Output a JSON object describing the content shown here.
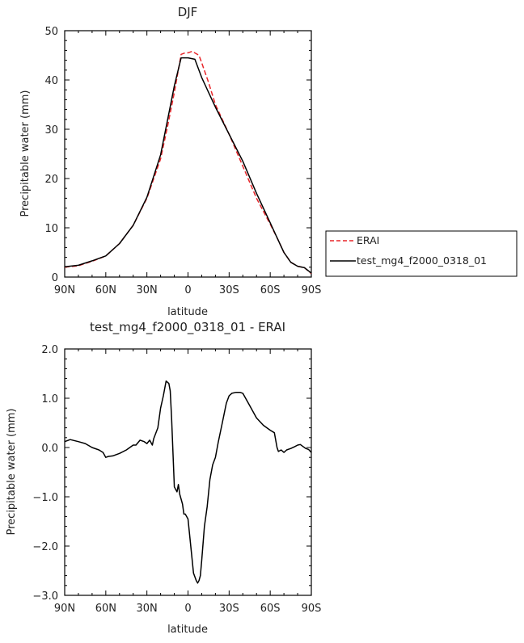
{
  "chart_data": [
    {
      "type": "line",
      "title": "DJF",
      "xlabel": "latitude",
      "ylabel": "Precipitable water  (mm)",
      "xlim": [
        90,
        -90
      ],
      "ylim": [
        0,
        50
      ],
      "x_ticks": [
        "90N",
        "60N",
        "30N",
        "0",
        "30S",
        "60S",
        "90S"
      ],
      "y_ticks": [
        "0",
        "10",
        "20",
        "30",
        "40",
        "50"
      ],
      "legend": {
        "placement": "right"
      },
      "series": [
        {
          "name": "ERAI",
          "color": "#e8262a",
          "dash": "dashed",
          "x": [
            90,
            80,
            70,
            60,
            50,
            40,
            30,
            20,
            15,
            10,
            5,
            2,
            0,
            -3,
            -8,
            -10,
            -15,
            -20,
            -30,
            -40,
            -50,
            -60,
            -65,
            -70,
            -75,
            -80,
            -85,
            -90
          ],
          "y": [
            2.0,
            2.3,
            3.2,
            4.3,
            6.8,
            10.5,
            16.0,
            24.0,
            30.5,
            37.5,
            45.2,
            45.5,
            45.5,
            45.8,
            45.0,
            43.5,
            39.5,
            35.0,
            29.0,
            22.5,
            16.0,
            10.7,
            8.0,
            5.0,
            3.0,
            2.2,
            1.9,
            0.7
          ]
        },
        {
          "name": "test_mg4_f2000_0318_01",
          "color": "#000000",
          "dash": "solid",
          "x": [
            90,
            80,
            70,
            60,
            50,
            40,
            30,
            20,
            15,
            10,
            5,
            0,
            -5,
            -10,
            -15,
            -20,
            -30,
            -40,
            -50,
            -60,
            -65,
            -70,
            -75,
            -80,
            -85,
            -90
          ],
          "y": [
            2.1,
            2.4,
            3.3,
            4.3,
            6.8,
            10.5,
            16.2,
            24.8,
            31.8,
            38.8,
            44.5,
            44.5,
            44.2,
            40.5,
            37.5,
            34.5,
            29.0,
            23.5,
            17.0,
            11.0,
            8.0,
            5.0,
            3.0,
            2.2,
            1.9,
            0.8
          ]
        }
      ]
    },
    {
      "type": "line",
      "title": "test_mg4_f2000_0318_01  -  ERAI",
      "xlabel": "latitude",
      "ylabel": "Precipitable water  (mm)",
      "xlim": [
        90,
        -90
      ],
      "ylim": [
        -3.0,
        2.0
      ],
      "x_ticks": [
        "90N",
        "60N",
        "30N",
        "0",
        "30S",
        "60S",
        "90S"
      ],
      "y_ticks": [
        "−3.0",
        "−2.0",
        "−1.0",
        "0.0",
        "1.0",
        "2.0"
      ],
      "series": [
        {
          "color": "#000000",
          "x": [
            90,
            86,
            80,
            75,
            70,
            65,
            62,
            60,
            58,
            55,
            50,
            45,
            40,
            38,
            35,
            32,
            30,
            28,
            26,
            25,
            22,
            20,
            18,
            16,
            14,
            13,
            12,
            10,
            8,
            7,
            6,
            5,
            4,
            3,
            2,
            0,
            -2,
            -4,
            -6,
            -7,
            -8,
            -9,
            -10,
            -12,
            -14,
            -16,
            -18,
            -20,
            -22,
            -25,
            -28,
            -30,
            -32,
            -35,
            -38,
            -40,
            -45,
            -50,
            -55,
            -60,
            -63,
            -65,
            -66,
            -68,
            -70,
            -72,
            -75,
            -78,
            -80,
            -82,
            -84,
            -86,
            -88,
            -90
          ],
          "y": [
            0.12,
            0.16,
            0.12,
            0.08,
            0.0,
            -0.05,
            -0.1,
            -0.2,
            -0.18,
            -0.17,
            -0.12,
            -0.05,
            0.05,
            0.05,
            0.15,
            0.12,
            0.08,
            0.15,
            0.05,
            0.18,
            0.4,
            0.8,
            1.05,
            1.35,
            1.3,
            1.15,
            0.6,
            -0.8,
            -0.9,
            -0.75,
            -0.95,
            -1.05,
            -1.15,
            -1.35,
            -1.35,
            -1.45,
            -2.0,
            -2.55,
            -2.7,
            -2.75,
            -2.7,
            -2.6,
            -2.3,
            -1.6,
            -1.2,
            -0.65,
            -0.35,
            -0.2,
            0.1,
            0.5,
            0.9,
            1.05,
            1.1,
            1.12,
            1.12,
            1.1,
            0.85,
            0.6,
            0.45,
            0.35,
            0.3,
            0.0,
            -0.08,
            -0.05,
            -0.1,
            -0.05,
            -0.02,
            0.02,
            0.05,
            0.06,
            0.02,
            -0.02,
            -0.04,
            -0.1
          ]
        }
      ]
    }
  ]
}
